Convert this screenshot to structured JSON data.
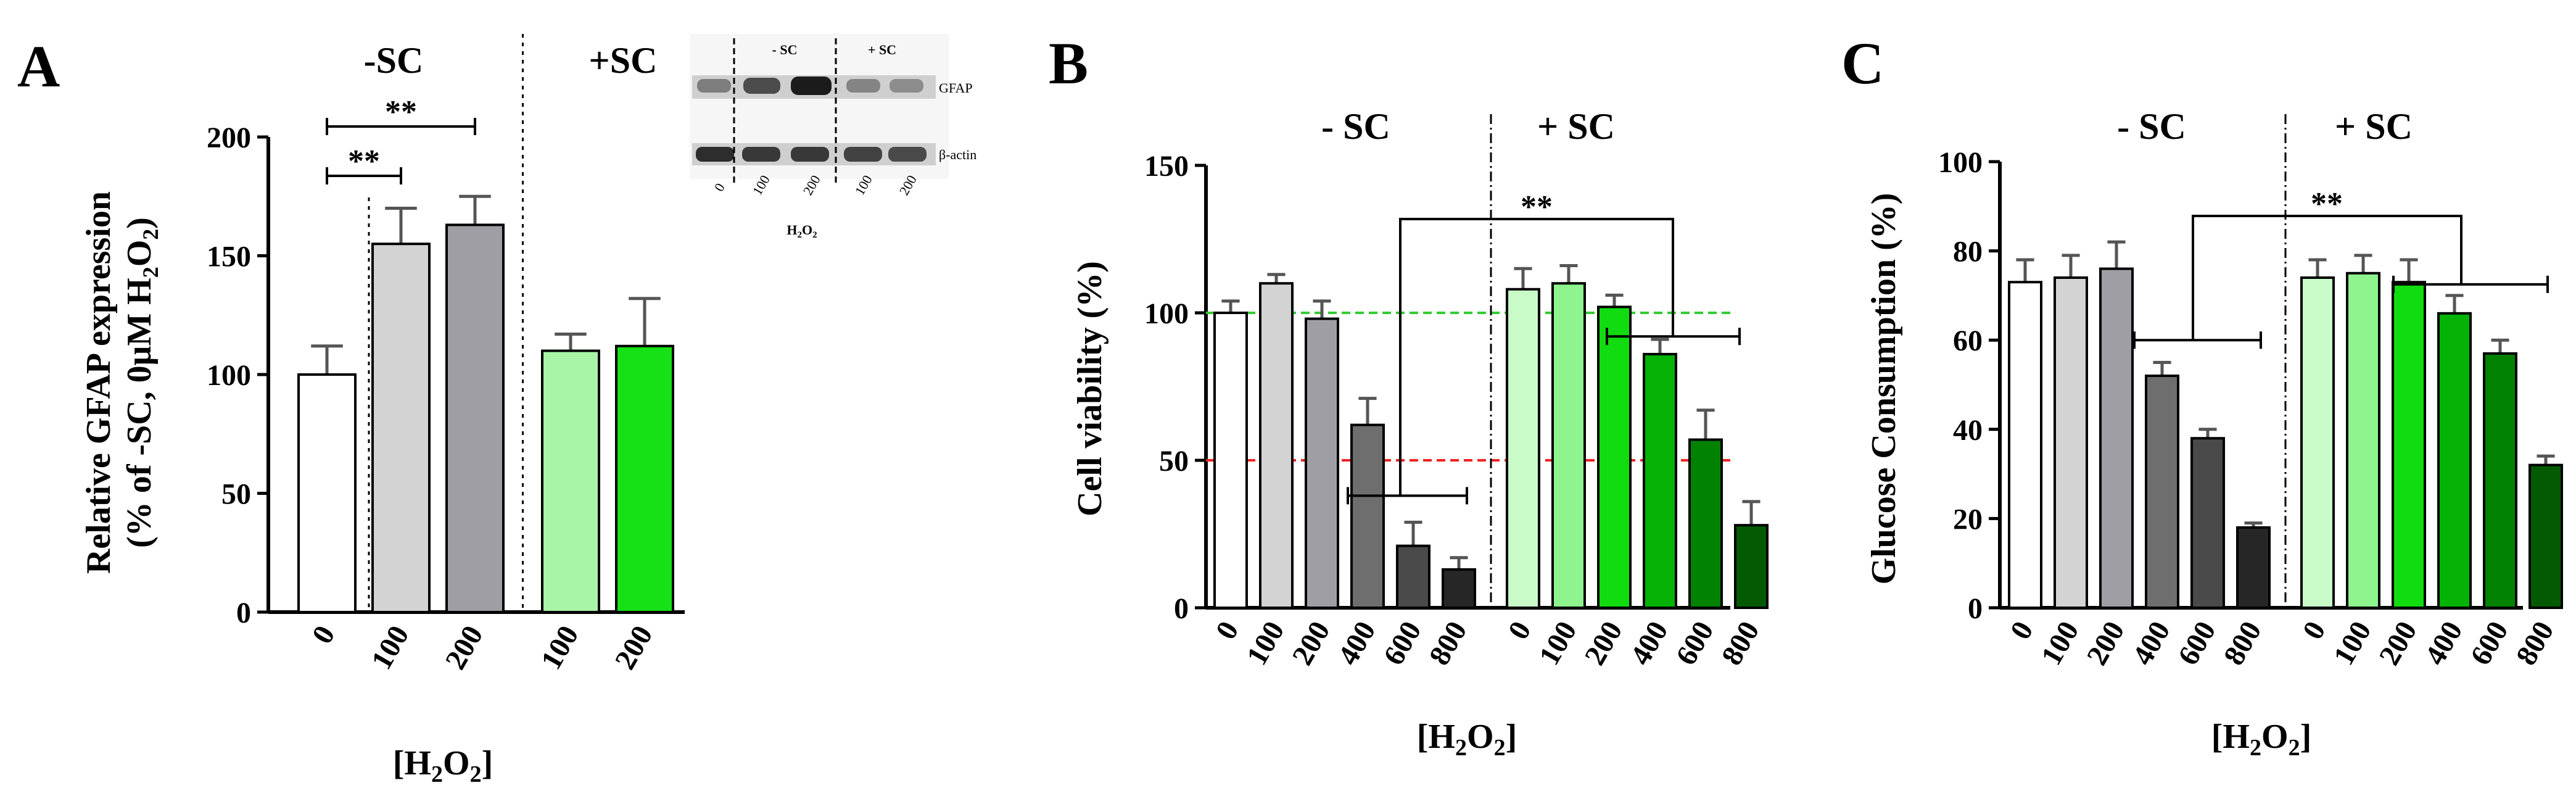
{
  "chart_data": [
    {
      "panel": "A",
      "type": "bar",
      "ylabel_line1": "Relative  GFAP expression",
      "ylabel_line2_prefix": "(% of  -SC, 0μM H",
      "ylabel_line2_mid": "O",
      "ylabel_line2_suffix": ")",
      "xlabel": "[H2O2]",
      "ylim": [
        0,
        200
      ],
      "yticks": [
        0,
        50,
        100,
        150,
        200
      ],
      "groups": [
        "-SC",
        "+SC"
      ],
      "categories": [
        "0",
        "100",
        "200",
        "100",
        "200"
      ],
      "values": [
        100,
        155,
        163,
        110,
        112
      ],
      "errors": [
        12,
        15,
        12,
        7,
        20
      ],
      "colors": [
        "#ffffff",
        "#d3d3d3",
        "#9e9ea4",
        "#a8f5a8",
        "#16e016"
      ],
      "significance": [
        {
          "from": 0,
          "to": 1,
          "label": "**"
        },
        {
          "from": 0,
          "to": 2,
          "label": "**"
        }
      ],
      "blot": {
        "lanes": [
          "0",
          "100",
          "200",
          "100",
          "200"
        ],
        "group_labels": [
          "- SC",
          "+ SC"
        ],
        "row_labels": [
          "GFAP",
          "β-actin"
        ],
        "xlabel": "H2O2"
      }
    },
    {
      "panel": "B",
      "type": "bar",
      "ylabel": "Cell viability (%)",
      "xlabel": "[H2O2]",
      "ylim": [
        0,
        150
      ],
      "yticks": [
        0,
        50,
        100,
        150
      ],
      "groups": [
        "- SC",
        "+ SC"
      ],
      "categories": [
        "0",
        "100",
        "200",
        "400",
        "600",
        "800",
        "0",
        "100",
        "200",
        "400",
        "600",
        "800"
      ],
      "values": [
        100,
        110,
        98,
        62,
        21,
        13,
        108,
        110,
        102,
        86,
        57,
        28
      ],
      "errors": [
        4,
        3,
        6,
        9,
        8,
        4,
        7,
        6,
        4,
        5,
        10,
        8
      ],
      "colors": [
        "#ffffff",
        "#d3d3d3",
        "#9e9ea4",
        "#6e6e6e",
        "#4a4a4a",
        "#262626",
        "#c8fbc8",
        "#8ef58e",
        "#10dc10",
        "#04b304",
        "#028202",
        "#035a03"
      ],
      "reference_lines": [
        {
          "value": 100,
          "color": "#33cc33"
        },
        {
          "value": 50,
          "color": "#ee2222"
        }
      ],
      "significance": [
        {
          "label": "**"
        }
      ]
    },
    {
      "panel": "C",
      "type": "bar",
      "ylabel": "Glucose Consumption (%)",
      "xlabel": "[H2O2]",
      "ylim": [
        0,
        100
      ],
      "yticks": [
        0,
        20,
        40,
        60,
        80,
        100
      ],
      "groups": [
        "- SC",
        "+ SC"
      ],
      "categories": [
        "0",
        "100",
        "200",
        "400",
        "600",
        "800",
        "0",
        "100",
        "200",
        "400",
        "600",
        "800"
      ],
      "values": [
        73,
        74,
        76,
        52,
        38,
        18,
        74,
        75,
        73,
        66,
        57,
        32
      ],
      "errors": [
        5,
        5,
        6,
        3,
        2,
        1,
        4,
        4,
        5,
        4,
        3,
        2
      ],
      "colors": [
        "#ffffff",
        "#d3d3d3",
        "#9e9ea4",
        "#6e6e6e",
        "#4a4a4a",
        "#262626",
        "#c8fbc8",
        "#8ef58e",
        "#10dc10",
        "#04b304",
        "#028202",
        "#035a03"
      ],
      "significance": [
        {
          "label": "**"
        }
      ]
    }
  ]
}
